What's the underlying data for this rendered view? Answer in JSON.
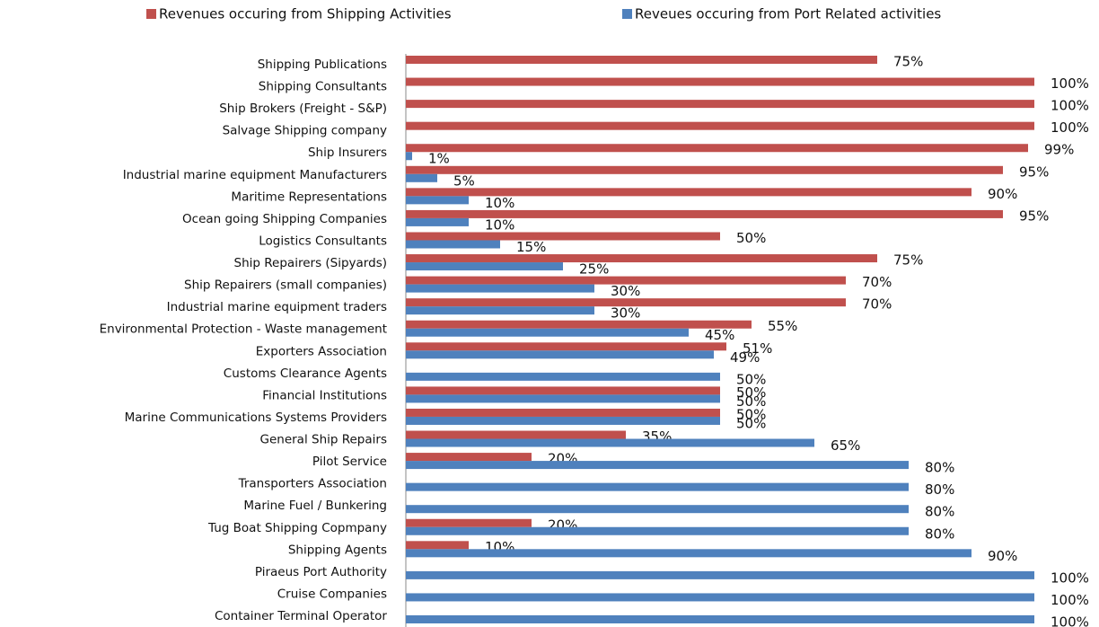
{
  "chart_data": {
    "type": "hbar",
    "legend": "top",
    "xlim": [
      0,
      100
    ],
    "categories": [
      "Shipping Publications",
      "Shipping Consultants",
      "Ship Brokers (Freight - S&P)",
      "Salvage Shipping company",
      "Ship Insurers",
      "Industrial marine equipment Manufacturers",
      "Maritime Representations",
      "Ocean going Shipping Companies",
      "Logistics Consultants",
      "Ship Repairers (Sipyards)",
      "Ship Repairers (small companies)",
      "Industrial marine equipment traders",
      "Environmental Protection - Waste management",
      "Exporters Association",
      "Customs Clearance Agents",
      "Financial Institutions",
      "Marine Communications Systems Providers",
      "General Ship Repairs",
      "Pilot Service",
      "Transporters Association",
      "Marine Fuel / Bunkering",
      "Tug Boat Shipping Copmpany",
      "Shipping Agents",
      "Piraeus Port Authority",
      "Cruise Companies",
      "Container Terminal Operator"
    ],
    "series": [
      {
        "name": "Revenues occuring from Shipping Activities",
        "color": "#c0504d",
        "values": [
          75,
          100,
          100,
          100,
          99,
          95,
          90,
          95,
          50,
          75,
          70,
          70,
          55,
          51,
          null,
          50,
          50,
          35,
          20,
          null,
          null,
          20,
          10,
          null,
          null,
          null
        ],
        "value_labels": [
          "75%",
          "100%",
          "100%",
          "100%",
          "99%",
          "95%",
          "90%",
          "95%",
          "50%",
          "75%",
          "70%",
          "70%",
          "55%",
          "51%",
          null,
          "50%",
          "50%",
          "35%",
          "20%",
          null,
          null,
          "20%",
          "10%",
          null,
          null,
          null
        ]
      },
      {
        "name": "Reveues occuring from Port Related activities",
        "color": "#4f81bd",
        "values": [
          null,
          null,
          null,
          null,
          1,
          5,
          10,
          10,
          15,
          25,
          30,
          30,
          45,
          49,
          50,
          50,
          50,
          65,
          80,
          80,
          80,
          80,
          90,
          100,
          100,
          100
        ],
        "value_labels": [
          null,
          null,
          null,
          null,
          "1%",
          "5%",
          "10%",
          "10%",
          "15%",
          "25%",
          "30%",
          "30%",
          "45%",
          "49%",
          "50%",
          "50%",
          "50%",
          "65%",
          "80%",
          "80%",
          "80%",
          "80%",
          "90%",
          "100%",
          "100%",
          "100%"
        ]
      }
    ]
  }
}
